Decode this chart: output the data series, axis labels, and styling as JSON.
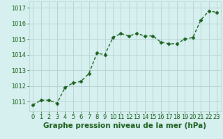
{
  "x": [
    0,
    1,
    2,
    3,
    4,
    5,
    6,
    7,
    8,
    9,
    10,
    11,
    12,
    13,
    14,
    15,
    16,
    17,
    18,
    19,
    20,
    21,
    22,
    23
  ],
  "y": [
    1010.8,
    1011.1,
    1011.1,
    1010.9,
    1011.9,
    1012.2,
    1012.3,
    1012.8,
    1014.1,
    1014.0,
    1015.1,
    1015.35,
    1015.2,
    1015.35,
    1015.2,
    1015.2,
    1014.8,
    1014.7,
    1014.7,
    1015.0,
    1015.1,
    1016.2,
    1016.8,
    1016.7
  ],
  "line_color": "#1a5c1a",
  "marker": "D",
  "marker_size": 2.5,
  "bg_color": "#d6f0f0",
  "grid_color": "#b8d0d0",
  "xlabel": "Graphe pression niveau de la mer (hPa)",
  "xlabel_fontsize": 7.5,
  "xlabel_color": "#1a5c1a",
  "ylabel_ticks": [
    1011,
    1012,
    1013,
    1014,
    1015,
    1016,
    1017
  ],
  "xlim": [
    -0.5,
    23.5
  ],
  "ylim": [
    1010.4,
    1017.4
  ],
  "tick_fontsize": 6,
  "tick_color": "#1a5c1a",
  "linewidth": 1.0
}
